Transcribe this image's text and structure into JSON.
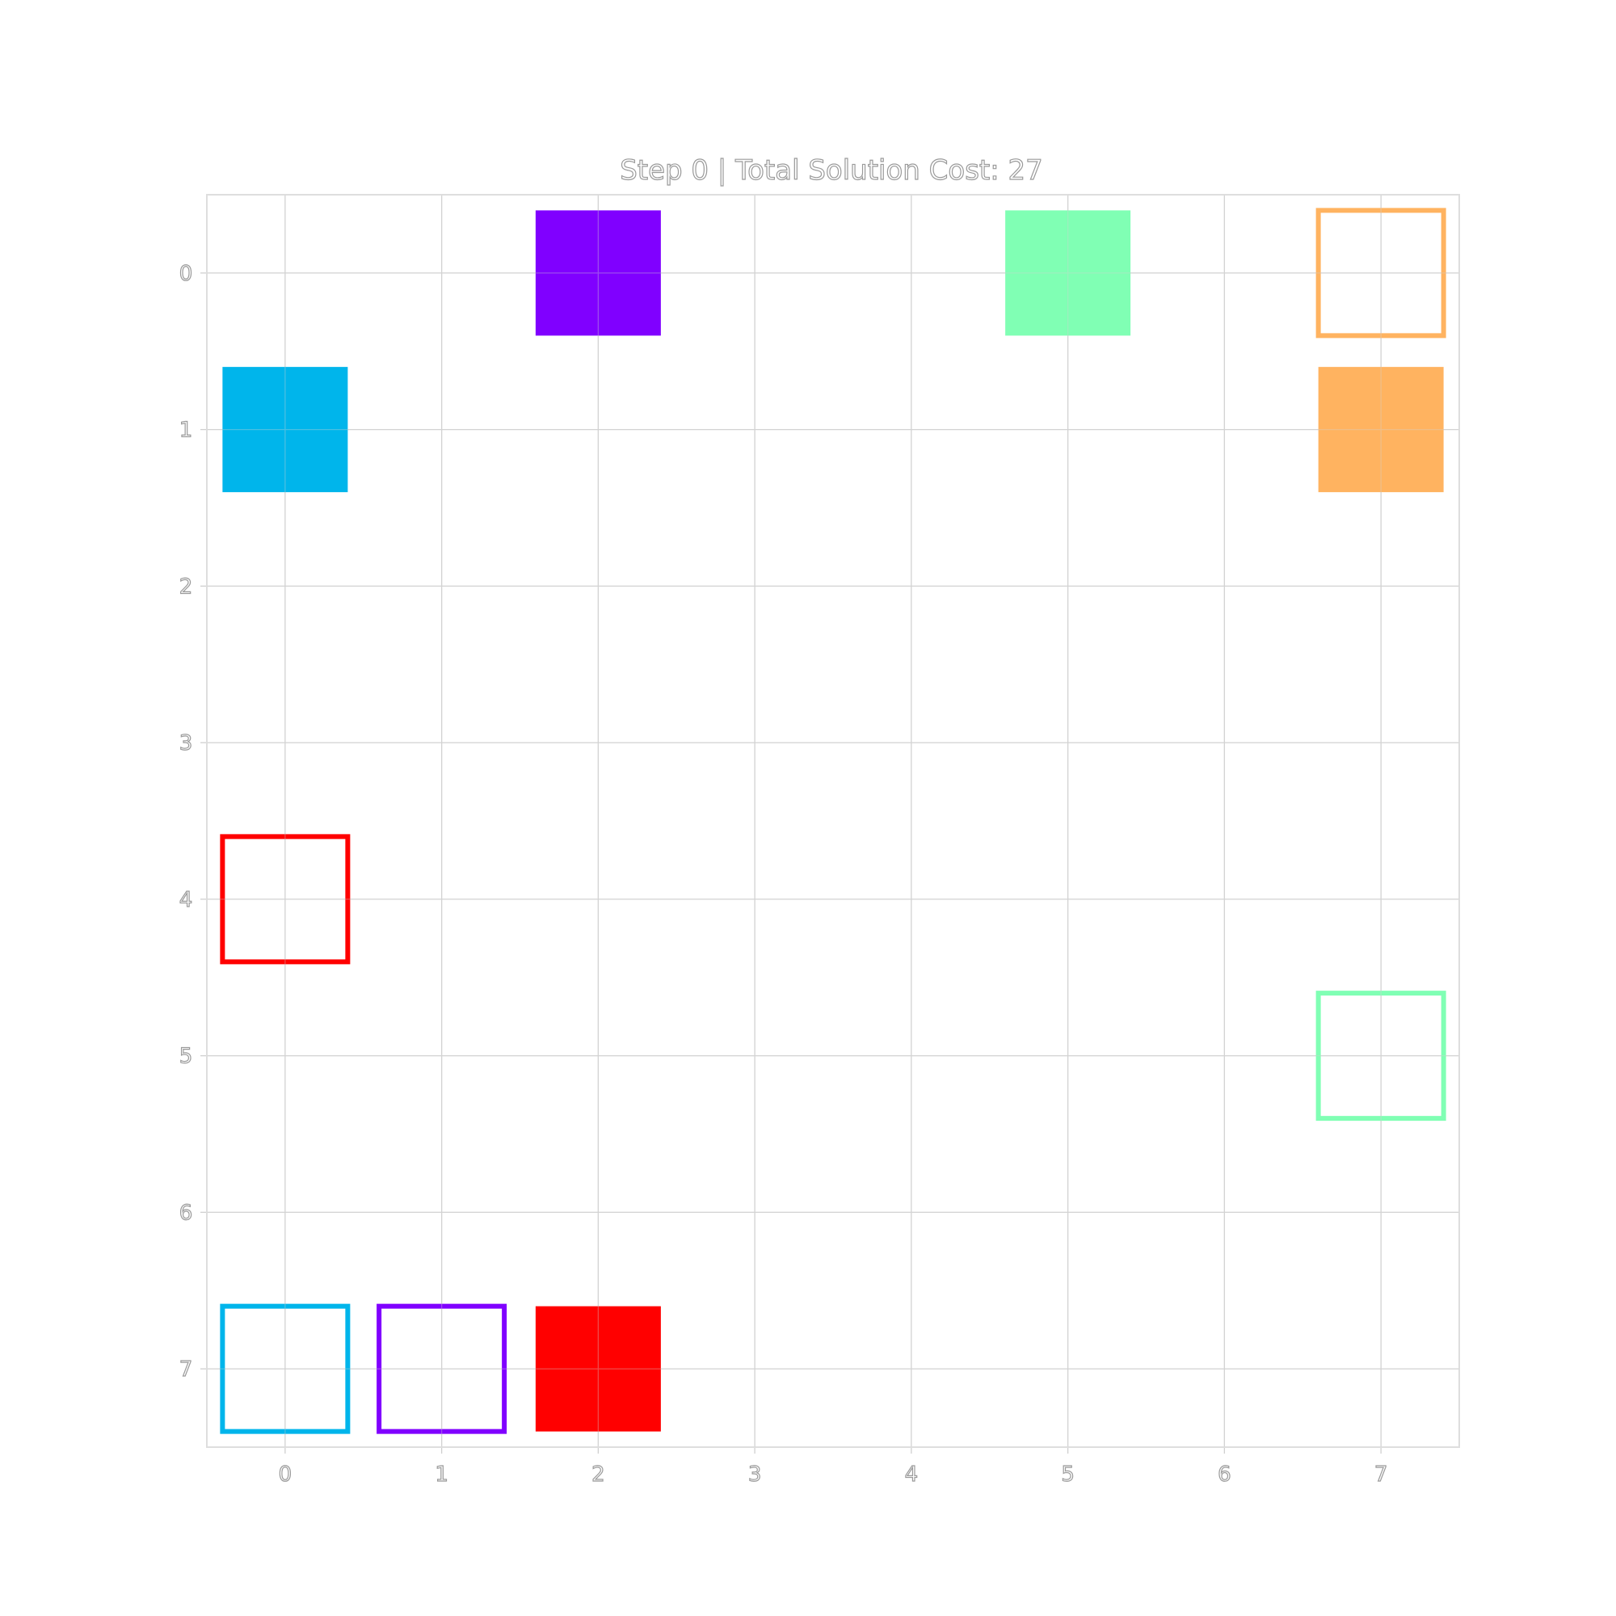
{
  "chart_data": {
    "type": "heatmap",
    "title": "Step 0 | Total Solution Cost: 27",
    "xlabel": "",
    "ylabel": "",
    "grid_size": 8,
    "xlim": [
      -0.5,
      7.5
    ],
    "ylim": [
      7.5,
      -0.5
    ],
    "x_ticks": [
      "0",
      "1",
      "2",
      "3",
      "4",
      "5",
      "6",
      "7"
    ],
    "y_ticks": [
      "0",
      "1",
      "2",
      "3",
      "4",
      "5",
      "6",
      "7"
    ],
    "grid": true,
    "agents": [
      {
        "color": "#8000ff",
        "position": {
          "col": 2,
          "row": 0
        },
        "goal": {
          "col": 1,
          "row": 7
        }
      },
      {
        "color": "#00b5eb",
        "position": {
          "col": 0,
          "row": 1
        },
        "goal": {
          "col": 0,
          "row": 7
        }
      },
      {
        "color": "#80ffb4",
        "position": {
          "col": 5,
          "row": 0
        },
        "goal": {
          "col": 7,
          "row": 5
        }
      },
      {
        "color": "#ffb360",
        "position": {
          "col": 7,
          "row": 1
        },
        "goal": {
          "col": 7,
          "row": 0
        }
      },
      {
        "color": "#ff0000",
        "position": {
          "col": 2,
          "row": 7
        },
        "goal": {
          "col": 0,
          "row": 4
        }
      }
    ]
  }
}
